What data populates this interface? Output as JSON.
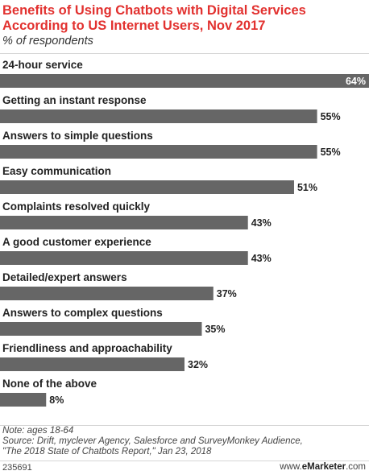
{
  "header": {
    "title": "Benefits of Using Chatbots with Digital Services According to US Internet Users, Nov 2017",
    "subtitle": "% of respondents"
  },
  "chart_data": {
    "type": "bar",
    "orientation": "horizontal",
    "categories": [
      "24-hour service",
      "Getting an instant response",
      "Answers to simple questions",
      "Easy communication",
      "Complaints resolved quickly",
      "A good customer experience",
      "Detailed/expert answers",
      "Answers to complex questions",
      "Friendliness and approachability",
      "None of the above"
    ],
    "values": [
      64,
      55,
      55,
      51,
      43,
      43,
      37,
      35,
      32,
      8
    ],
    "value_labels": [
      "64%",
      "55%",
      "55%",
      "51%",
      "43%",
      "43%",
      "37%",
      "35%",
      "32%",
      "8%"
    ],
    "xlim": [
      0,
      64
    ],
    "bar_color": "#666666",
    "inside_label_color": "#ffffff",
    "outside_label_color": "#222222",
    "grid": false,
    "legend": "none"
  },
  "footer": {
    "note": "Note: ages 18-64",
    "source_line1": "Source: Drift, myclever Agency, Salesforce and SurveyMonkey Audience,",
    "source_line2": "\"The 2018 State of Chatbots Report,\" Jan 23, 2018",
    "chart_id": "235691",
    "brand_prefix": "www.",
    "brand_name": "eMarketer",
    "brand_suffix": ".com"
  }
}
